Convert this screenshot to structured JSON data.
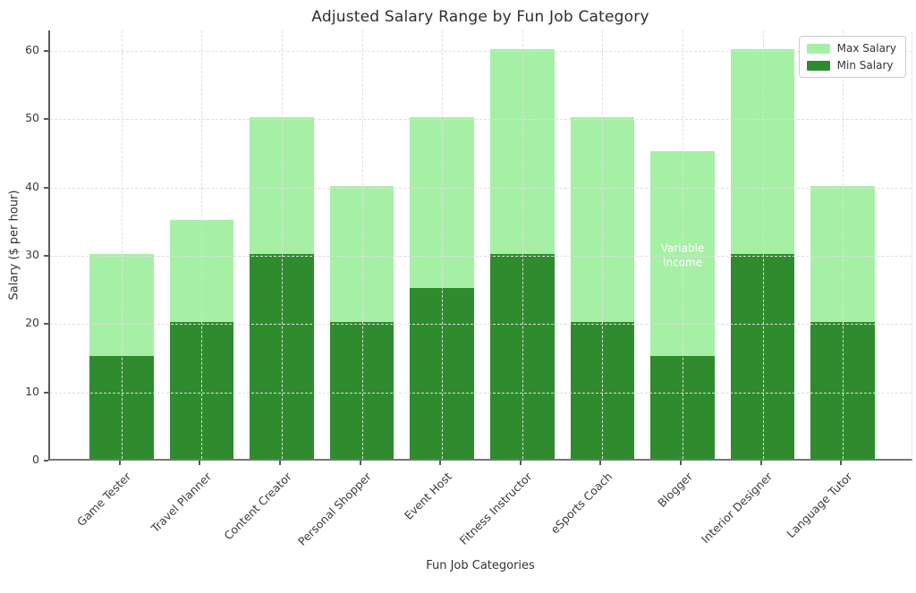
{
  "chart_data": {
    "type": "bar",
    "title": "Adjusted Salary Range by Fun Job Category",
    "xlabel": "Fun Job Categories",
    "ylabel": "Salary ($ per hour)",
    "categories": [
      "Game Tester",
      "Travel Planner",
      "Content Creator",
      "Personal Shopper",
      "Event Host",
      "Fitness Instructor",
      "eSports Coach",
      "Blogger",
      "Interior Designer",
      "Language Tutor"
    ],
    "series": [
      {
        "name": "Max Salary",
        "color": "#a6f0a6",
        "values": [
          30,
          35,
          50,
          40,
          50,
          60,
          50,
          45,
          60,
          40
        ]
      },
      {
        "name": "Min Salary",
        "color": "#2e8b2e",
        "values": [
          15,
          20,
          30,
          20,
          25,
          30,
          20,
          15,
          30,
          20
        ]
      }
    ],
    "yticks": [
      0,
      10,
      20,
      30,
      40,
      50,
      60
    ],
    "ylim": [
      0,
      63
    ],
    "grid": true,
    "legend_position": "upper right",
    "annotation": {
      "lines": [
        "Variable",
        "Income"
      ],
      "category": "Blogger",
      "category_index": 7,
      "y_center": 30,
      "color": "#ffffff"
    }
  }
}
